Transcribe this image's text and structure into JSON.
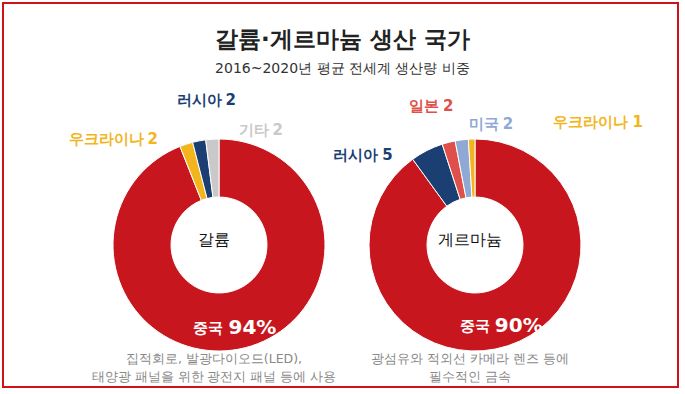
{
  "title": "갈륨·게르마늄 생산 국가",
  "subtitle": "2016~2020년 평균 전세계 생산량 비중",
  "chart_data": [
    {
      "type": "pie",
      "center_label": "갈륨",
      "categories": [
        "중국",
        "우크라이나",
        "러시아",
        "기타"
      ],
      "values": [
        94,
        2,
        2,
        2
      ],
      "value_labels": [
        "94%",
        "2",
        "2",
        "2"
      ],
      "colors": [
        "#c8161e",
        "#f2b51d",
        "#1b3f73",
        "#c9c9c9"
      ],
      "data_labels": true,
      "annotations": [
        "집적회로, 발광다이오드(LED),",
        "태양광 패널을 위한 광전지 패널 등에 사용"
      ]
    },
    {
      "type": "pie",
      "center_label": "게르마늄",
      "categories": [
        "중국",
        "러시아",
        "일본",
        "미국",
        "우크라이나"
      ],
      "values": [
        90,
        5,
        2,
        2,
        1
      ],
      "value_labels": [
        "90%",
        "5",
        "2",
        "2",
        "1"
      ],
      "colors": [
        "#c8161e",
        "#1b3f73",
        "#e0504a",
        "#8fa8d4",
        "#f2b51d"
      ],
      "data_labels": true,
      "annotations": [
        "광섬유와 적외선 카메라 렌즈 등에",
        "필수적인 금속"
      ]
    }
  ]
}
